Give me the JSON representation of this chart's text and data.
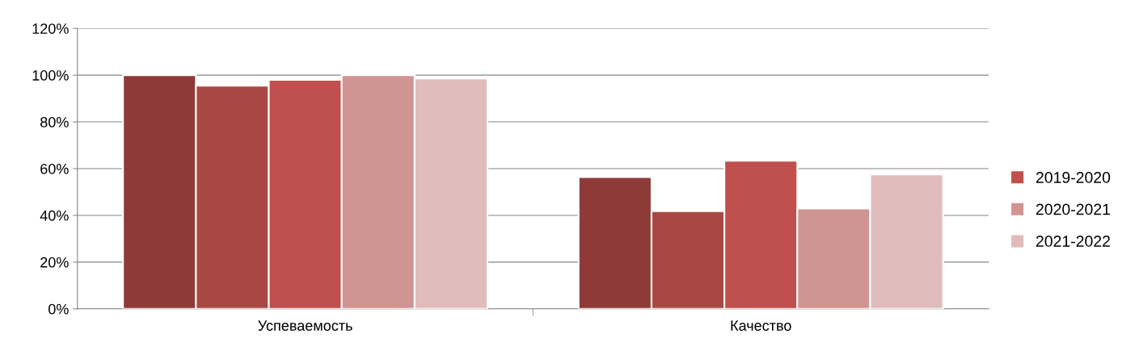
{
  "chart_data": {
    "type": "bar",
    "categories": [
      "Успеваемость",
      "Качество"
    ],
    "series": [
      {
        "color": "#8e3a38",
        "values": [
          100,
          56.4
        ]
      },
      {
        "color": "#a84845",
        "values": [
          95.5,
          41.8
        ]
      },
      {
        "name": "2019-2020",
        "color": "#c0504d",
        "values": [
          98,
          63.4
        ]
      },
      {
        "name": "2020-2021",
        "color": "#d09492",
        "values": [
          100,
          42.9
        ]
      },
      {
        "name": "2021-2022",
        "color": "#e0bcbc",
        "values": [
          98.6,
          57.5
        ]
      }
    ],
    "ylim": [
      0,
      120
    ],
    "yticks": [
      {
        "value": 0,
        "label": "0%"
      },
      {
        "value": 20,
        "label": "20%"
      },
      {
        "value": 40,
        "label": "40%"
      },
      {
        "value": 60,
        "label": "60%"
      },
      {
        "value": 80,
        "label": "80%"
      },
      {
        "value": 100,
        "label": "100%"
      },
      {
        "value": 120,
        "label": "120%"
      }
    ],
    "grid": "y",
    "legend": "right"
  }
}
